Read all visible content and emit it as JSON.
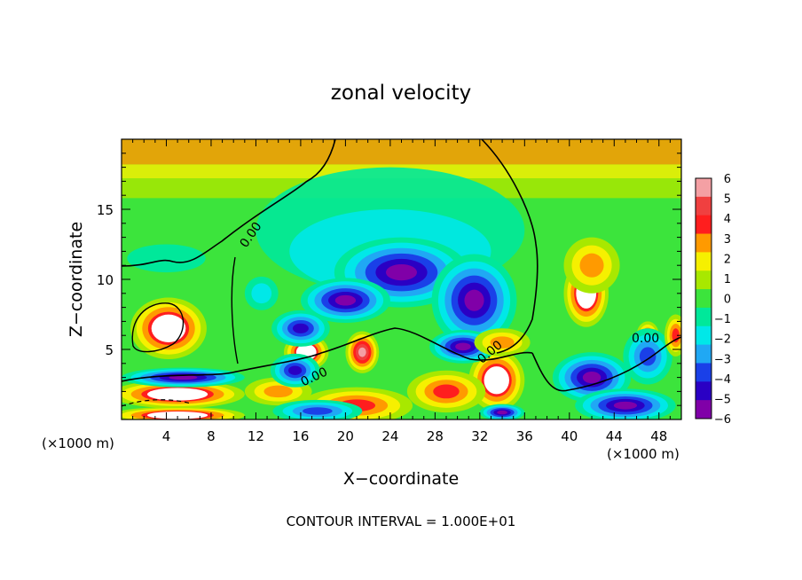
{
  "chart_data": {
    "type": "heatmap",
    "title": "zonal velocity",
    "xlabel": "X−coordinate",
    "ylabel": "Z−coordinate",
    "x_unit_left": "(×1000 m)",
    "x_unit_right": "(×1000 m)",
    "xlim": [
      0,
      50
    ],
    "ylim": [
      0,
      20
    ],
    "x_ticks": [
      4,
      8,
      12,
      16,
      20,
      24,
      28,
      32,
      36,
      40,
      44,
      48
    ],
    "y_ticks": [
      5,
      10,
      15
    ],
    "colorbar": {
      "levels": [
        6,
        5,
        4,
        3,
        2,
        1,
        0,
        -1,
        -2,
        -3,
        -4,
        -5,
        -6
      ],
      "labels": [
        "6",
        "5",
        "4",
        "3",
        "2",
        "1",
        "0",
        "−1",
        "−2",
        "−3",
        "−4",
        "−5",
        "−6"
      ],
      "colors": [
        "#f4a0a4",
        "#f04040",
        "#ff1e1e",
        "#ff9a00",
        "#f6f000",
        "#a8e800",
        "#3ce43c",
        "#00e89a",
        "#00e8e8",
        "#20a8f4",
        "#1a40e8",
        "#2a00c4",
        "#8000a8"
      ]
    },
    "contour_labels": [
      "0.00",
      "0.00",
      "0.00",
      "0.00",
      "0.00"
    ],
    "footer": "CONTOUR INTERVAL = 1.000E+01",
    "features": [
      {
        "x": 4.2,
        "z": 6.5,
        "value": 9,
        "rx": 3.4,
        "rz": 2.2
      },
      {
        "x": 16.5,
        "z": 4.8,
        "value": 8,
        "rx": 2.0,
        "rz": 1.3
      },
      {
        "x": 21.5,
        "z": 4.8,
        "value": 6,
        "rx": 1.5,
        "rz": 1.5
      },
      {
        "x": 32.0,
        "z": 9.0,
        "value": 9,
        "rx": 3.0,
        "rz": 2.6
      },
      {
        "x": 41.5,
        "z": 9.0,
        "value": 9,
        "rx": 2.0,
        "rz": 2.4
      },
      {
        "x": 33.5,
        "z": 2.8,
        "value": 8,
        "rx": 2.5,
        "rz": 2.2
      },
      {
        "x": 29.0,
        "z": 2.0,
        "value": 4,
        "rx": 3.5,
        "rz": 1.5
      },
      {
        "x": 21.0,
        "z": 1.0,
        "value": 4,
        "rx": 5.0,
        "rz": 1.3
      },
      {
        "x": 47.0,
        "z": 6.0,
        "value": 4,
        "rx": 1.0,
        "rz": 1.0
      },
      {
        "x": 5.0,
        "z": 1.8,
        "value": 7,
        "rx": 6.0,
        "rz": 1.0
      },
      {
        "x": 5.0,
        "z": 0.3,
        "value": 9,
        "rx": 6.0,
        "rz": 0.6
      },
      {
        "x": 14.0,
        "z": 2.0,
        "value": 3,
        "rx": 3.0,
        "rz": 1.0
      },
      {
        "x": 25.0,
        "z": 10.5,
        "value": -6,
        "rx": 6.0,
        "rz": 2.5
      },
      {
        "x": 20.0,
        "z": 8.5,
        "value": -6,
        "rx": 4.0,
        "rz": 1.6
      },
      {
        "x": 31.5,
        "z": 8.5,
        "value": -6,
        "rx": 3.8,
        "rz": 3.3
      },
      {
        "x": 30.5,
        "z": 5.2,
        "value": -6,
        "rx": 3.0,
        "rz": 1.2
      },
      {
        "x": 16.0,
        "z": 6.5,
        "value": -5,
        "rx": 2.6,
        "rz": 1.3
      },
      {
        "x": 15.5,
        "z": 3.5,
        "value": -5,
        "rx": 2.2,
        "rz": 1.2
      },
      {
        "x": 42.0,
        "z": 3.0,
        "value": -6,
        "rx": 3.5,
        "rz": 1.8
      },
      {
        "x": 45.0,
        "z": 1.0,
        "value": -6,
        "rx": 4.5,
        "rz": 1.2
      },
      {
        "x": 47.0,
        "z": 4.5,
        "value": -4,
        "rx": 2.2,
        "rz": 2.0
      },
      {
        "x": 5.5,
        "z": 3.0,
        "value": -6,
        "rx": 5.5,
        "rz": 0.7
      },
      {
        "x": 17.5,
        "z": 0.6,
        "value": -4,
        "rx": 4.0,
        "rz": 0.8
      },
      {
        "x": 34.0,
        "z": 0.5,
        "value": -6,
        "rx": 2.0,
        "rz": 0.6
      },
      {
        "x": 12.5,
        "z": 9.0,
        "value": -2,
        "rx": 1.5,
        "rz": 1.2
      },
      {
        "x": 4.0,
        "z": 11.5,
        "value": -1,
        "rx": 3.5,
        "rz": 1.0
      },
      {
        "x": 42.0,
        "z": 11.0,
        "value": 3,
        "rx": 2.5,
        "rz": 2.0
      },
      {
        "x": 34.0,
        "z": 5.5,
        "value": 3,
        "rx": 2.5,
        "rz": 1.0
      },
      {
        "x": 49.5,
        "z": 6.0,
        "value": 4,
        "rx": 1.0,
        "rz": 1.5
      }
    ]
  }
}
